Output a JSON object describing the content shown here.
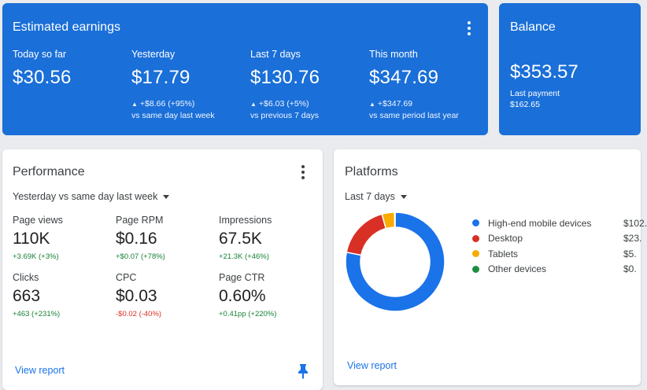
{
  "earnings": {
    "title": "Estimated earnings",
    "columns": [
      {
        "label": "Today so far",
        "value": "$30.56",
        "delta": "",
        "comparison": ""
      },
      {
        "label": "Yesterday",
        "value": "$17.79",
        "delta": "+$8.66 (+95%)",
        "comparison": "vs same day last week"
      },
      {
        "label": "Last 7 days",
        "value": "$130.76",
        "delta": "+$6.03 (+5%)",
        "comparison": "vs previous 7 days"
      },
      {
        "label": "This month",
        "value": "$347.69",
        "delta": "+$347.69",
        "comparison": "vs same period last year"
      }
    ],
    "trend_glyph": "▲"
  },
  "balance": {
    "title": "Balance",
    "value": "$353.57",
    "last_payment_label": "Last payment",
    "last_payment_value": "$162.65"
  },
  "performance": {
    "title": "Performance",
    "period": "Yesterday vs same day last week",
    "metrics": [
      {
        "label": "Page views",
        "value": "110K",
        "delta": "+3.69K (+3%)",
        "trend": "up"
      },
      {
        "label": "Page RPM",
        "value": "$0.16",
        "delta": "+$0.07 (+78%)",
        "trend": "up"
      },
      {
        "label": "Impressions",
        "value": "67.5K",
        "delta": "+21.3K (+46%)",
        "trend": "up"
      },
      {
        "label": "Clicks",
        "value": "663",
        "delta": "+463 (+231%)",
        "trend": "up"
      },
      {
        "label": "CPC",
        "value": "$0.03",
        "delta": "-$0.02 (-40%)",
        "trend": "down"
      },
      {
        "label": "Page CTR",
        "value": "0.60%",
        "delta": "+0.41pp (+220%)",
        "trend": "up"
      }
    ],
    "link": "View report"
  },
  "platforms": {
    "title": "Platforms",
    "period": "Last 7 days",
    "link": "View report",
    "items": [
      {
        "name": "High-end mobile devices",
        "value": "$102.",
        "share": 0.781,
        "color": "#1a73e8"
      },
      {
        "name": "Desktop",
        "value": "$23.",
        "share": 0.176,
        "color": "#d93025"
      },
      {
        "name": "Tablets",
        "value": "$5.",
        "share": 0.041,
        "color": "#f9ab00"
      },
      {
        "name": "Other devices",
        "value": "$0.",
        "share": 0.002,
        "color": "#1e8e3e"
      }
    ]
  },
  "colors": {
    "primary": "#1a6fd8",
    "positive": "#188038",
    "negative": "#d93025",
    "link": "#1a73e8"
  }
}
